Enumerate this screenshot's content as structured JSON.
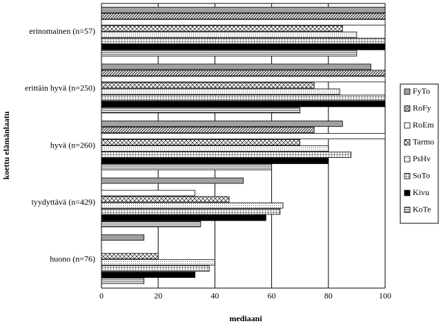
{
  "chart_data": {
    "type": "bar",
    "orientation": "horizontal",
    "x_label": "mediaani",
    "y_label": "koettu elämänlaatu",
    "categories": [
      "erinomainen (n=57)",
      "erittäin hyvä (n=250)",
      "hyvä (n=260)",
      "tyydyttävä (n=429)",
      "huono (n=76)"
    ],
    "series": [
      {
        "name": "FyTo",
        "color": "#a0a0a0",
        "pattern": "solid",
        "values": [
          100,
          95,
          85,
          50,
          15
        ]
      },
      {
        "name": "RoFy",
        "color": "#333333",
        "pattern": "diagonal",
        "values": [
          100,
          100,
          75,
          0,
          0
        ]
      },
      {
        "name": "RoEm",
        "color": "#ffffff",
        "pattern": "solid",
        "values": [
          100,
          100,
          100,
          33,
          0
        ]
      },
      {
        "name": "Tarmo",
        "color": "#333333",
        "pattern": "cross",
        "values": [
          85,
          75,
          70,
          45,
          20
        ]
      },
      {
        "name": "PsHv",
        "color": "#555555",
        "pattern": "dots",
        "values": [
          90,
          84,
          80,
          64,
          40
        ]
      },
      {
        "name": "SoTo",
        "color": "#333333",
        "pattern": "grid",
        "values": [
          100,
          100,
          88,
          63,
          38
        ]
      },
      {
        "name": "Kivu",
        "color": "#000000",
        "pattern": "solid",
        "values": [
          100,
          100,
          80,
          58,
          33
        ]
      },
      {
        "name": "KoTe",
        "color": "#333333",
        "pattern": "horizontal",
        "values": [
          90,
          70,
          60,
          35,
          15
        ]
      }
    ],
    "xlim": [
      0,
      100
    ],
    "xticks": [
      0,
      20,
      40,
      60,
      80,
      100
    ],
    "grid": true,
    "legend": "right"
  }
}
